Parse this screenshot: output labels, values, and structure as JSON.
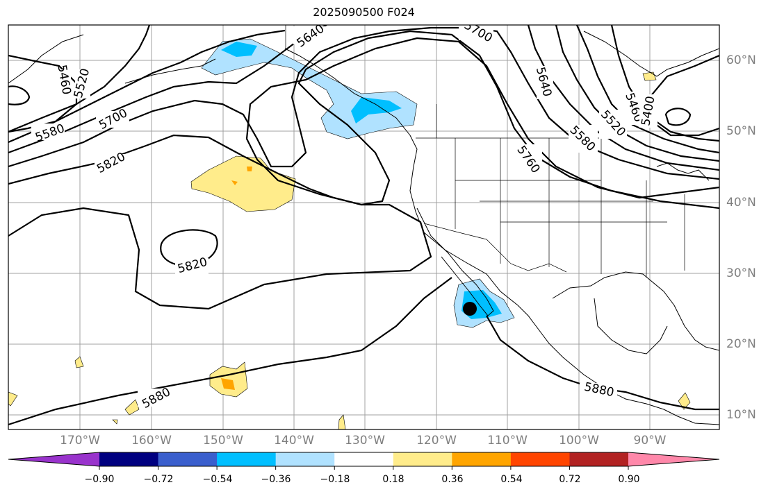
{
  "title": "2025090500 F024",
  "lon_ticks": [
    "170°W",
    "160°W",
    "150°W",
    "140°W",
    "130°W",
    "120°W",
    "110°W",
    "100°W",
    "90°W"
  ],
  "lat_ticks": [
    "60°N",
    "50°N",
    "40°N",
    "30°N",
    "20°N",
    "10°N"
  ],
  "contour_labels": [
    "5460",
    "5520",
    "5580",
    "5700",
    "5820",
    "5820",
    "5640",
    "5700",
    "5640",
    "5760",
    "5580",
    "5520",
    "5460",
    "5400",
    "5880",
    "5880"
  ],
  "colorbar": {
    "labels": [
      "−0.90",
      "−0.72",
      "−0.54",
      "−0.36",
      "−0.18",
      "0.18",
      "0.36",
      "0.54",
      "0.72",
      "0.90"
    ],
    "colors": [
      "#9933cc",
      "#000080",
      "#3a5fcd",
      "#00bfff",
      "#b0e2ff",
      "#ffffff",
      "#ffec8b",
      "#ffa500",
      "#ff4500",
      "#b22222",
      "#ff88aa"
    ]
  },
  "colors": {
    "frame": "#000000",
    "grid": "#a0a0a0",
    "tick_text": "#7f7f7f",
    "contour": "#000000",
    "shade_neg_light": "#b0e2ff",
    "shade_neg_mid": "#00bfff",
    "shade_pos_light": "#ffec8b",
    "shade_pos_mid": "#ffa500"
  }
}
